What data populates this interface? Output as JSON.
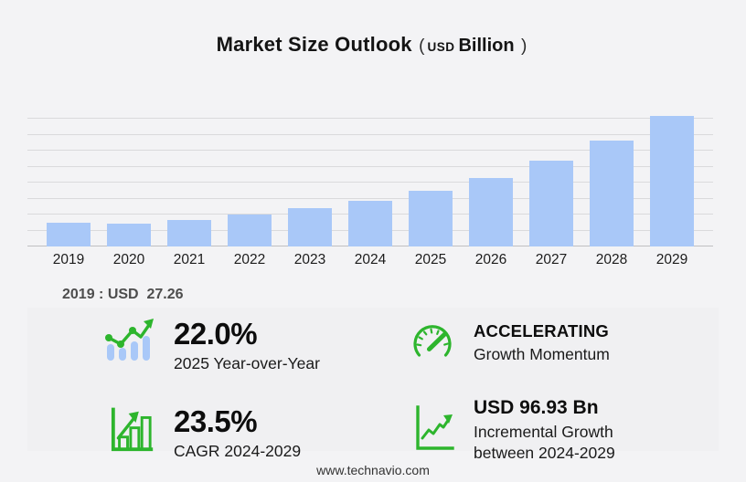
{
  "title": {
    "main": "Market Size Outlook",
    "paren_open": "(",
    "currency": "USD",
    "unit": "Billion",
    "paren_close": ")"
  },
  "chart_data": {
    "type": "bar",
    "categories": [
      "2019",
      "2020",
      "2021",
      "2022",
      "2023",
      "2024",
      "2025",
      "2026",
      "2027",
      "2028",
      "2029"
    ],
    "values": [
      27.26,
      25.5,
      29.9,
      36.3,
      43.5,
      51.75,
      63.14,
      78.5,
      97.5,
      120.5,
      148.68
    ],
    "title": "Market Size Outlook (USD Billion)",
    "xlabel": "",
    "ylabel": "USD Billion",
    "ylim": [
      0,
      156
    ],
    "grid": true,
    "gridline_count": 9,
    "legend": "none"
  },
  "annotation_2019": "2019 : USD  27.26",
  "stats": [
    {
      "icon": "trend-bars-icon",
      "value": "22.0%",
      "label": "2025 Year-over-Year"
    },
    {
      "icon": "speedometer-icon",
      "value": "ACCELERATING",
      "label": "Growth Momentum"
    },
    {
      "icon": "bar-growth-icon",
      "value": "23.5%",
      "label": "CAGR 2024-2029"
    },
    {
      "icon": "incremental-growth-icon",
      "value": "USD 96.93 Bn",
      "label": "Incremental Growth",
      "label2": "between 2024-2029"
    }
  ],
  "footer": {
    "website": "www.technavio.com"
  },
  "colors": {
    "background": "#f3f3f5",
    "panel": "#f0f0f2",
    "bar": "#a9c8f8",
    "gridline": "#dadadc",
    "axis": "#bfbfc1",
    "green": "#2db52d",
    "text": "#111111"
  }
}
